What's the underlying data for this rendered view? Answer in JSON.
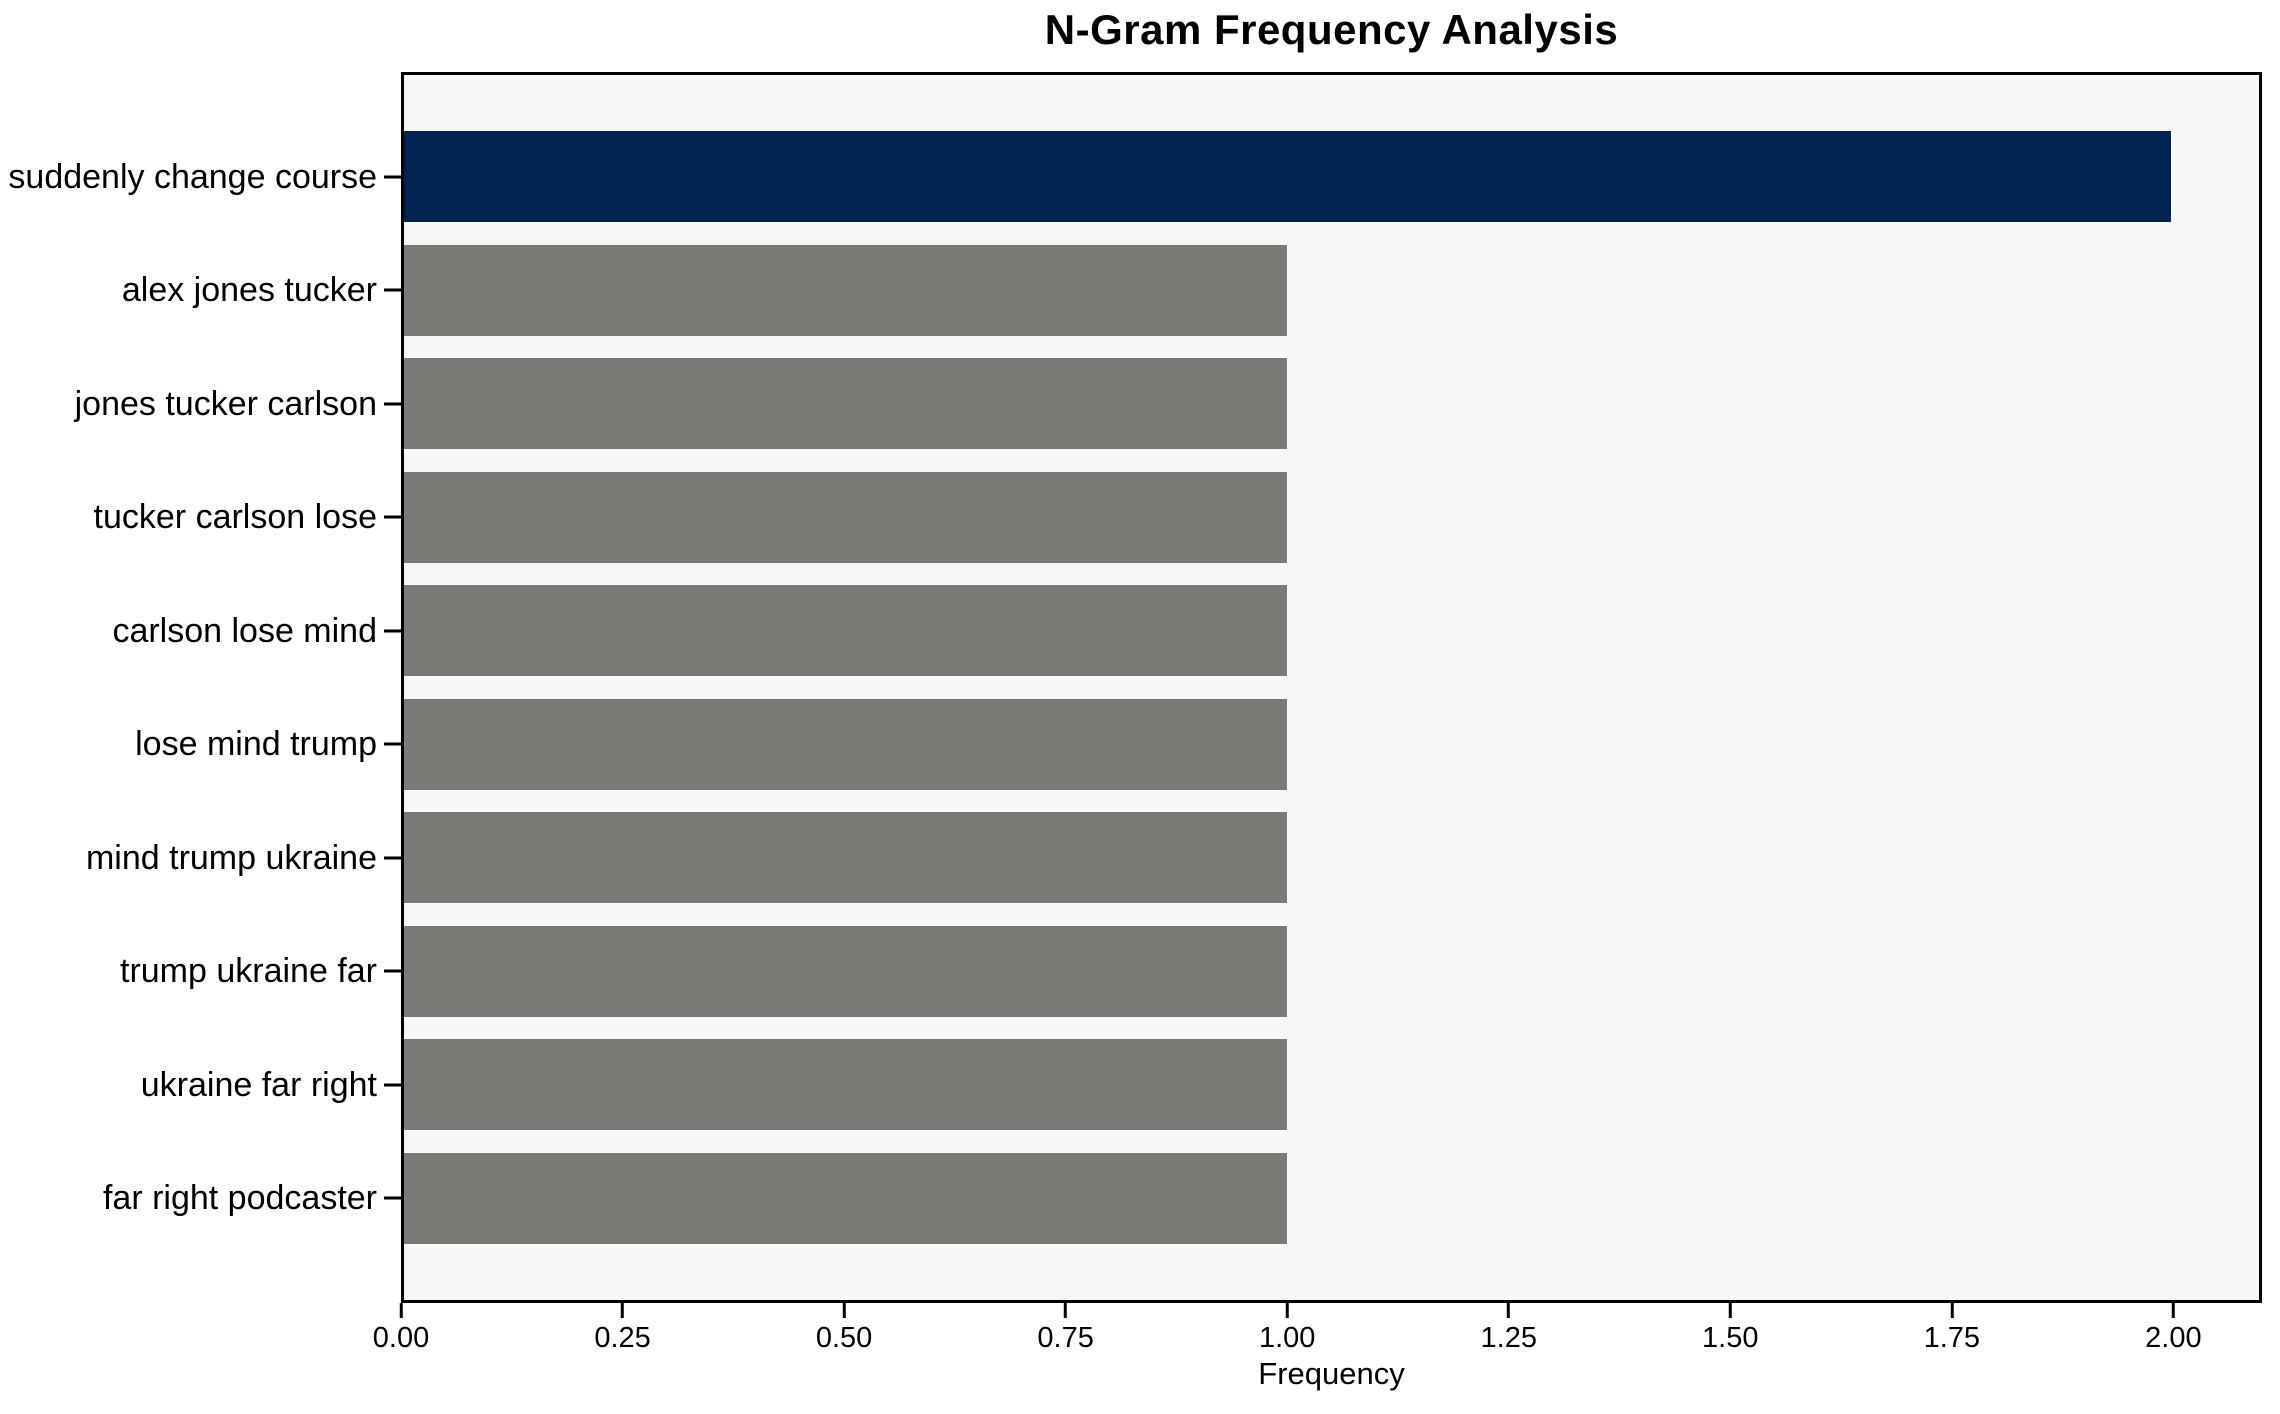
{
  "chart_data": {
    "type": "bar",
    "orientation": "horizontal",
    "title": "N-Gram Frequency Analysis",
    "xlabel": "Frequency",
    "ylabel": "",
    "categories": [
      "suddenly change course",
      "alex jones tucker",
      "jones tucker carlson",
      "tucker carlson lose",
      "carlson lose mind",
      "lose mind trump",
      "mind trump ukraine",
      "trump ukraine far",
      "ukraine far right",
      "far right podcaster"
    ],
    "values": [
      2,
      1,
      1,
      1,
      1,
      1,
      1,
      1,
      1,
      1
    ],
    "bar_colors": [
      "#02234d",
      "#7b7a77",
      "#7b7a77",
      "#7b7a77",
      "#7b7a77",
      "#7b7a77",
      "#7b7a77",
      "#7b7a77",
      "#7b7a77",
      "#7b7a77"
    ],
    "xlim": [
      0,
      2.1
    ],
    "xticks": [
      0,
      0.25,
      0.5,
      0.75,
      1.0,
      1.25,
      1.5,
      1.75,
      2.0
    ],
    "xtick_labels": [
      "0.00",
      "0.25",
      "0.50",
      "0.75",
      "1.00",
      "1.25",
      "1.50",
      "1.75",
      "2.00"
    ],
    "grid": false,
    "legend": "none",
    "colors": {
      "highlight_bar": "#02234d",
      "default_bar": "#7b7a77",
      "plot_background": "#f7f7f6",
      "figure_background": "#ffffff",
      "spine": "#000000",
      "text": "#000000"
    }
  }
}
